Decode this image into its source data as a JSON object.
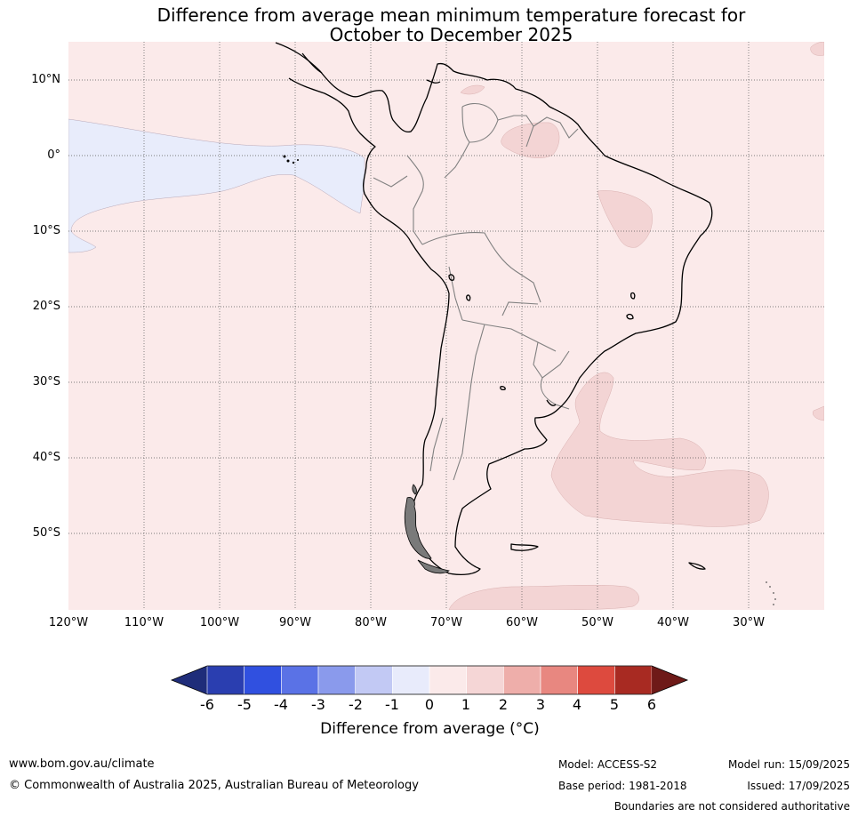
{
  "title": {
    "line1": "Difference from average mean minimum temperature forecast for",
    "line2": "October to December 2025"
  },
  "map": {
    "lat_labels": [
      "10°N",
      "0°",
      "10°S",
      "20°S",
      "30°S",
      "40°S",
      "50°S"
    ],
    "lon_labels": [
      "120°W",
      "110°W",
      "100°W",
      "90°W",
      "80°W",
      "70°W",
      "60°W",
      "50°W",
      "40°W",
      "30°W"
    ],
    "background_anomaly_class": "0 to 1",
    "colors": {
      "anom_0_1": "#fbeaea",
      "anom_1_2": "#f3d4d4",
      "anom_neg1_0": "#e8ecfb",
      "coast": "#000000",
      "borders": "#808080"
    }
  },
  "colorbar": {
    "ticks": [
      "-6",
      "-5",
      "-4",
      "-3",
      "-2",
      "-1",
      "0",
      "1",
      "2",
      "3",
      "4",
      "5",
      "6"
    ],
    "colors": [
      "#1f2d7a",
      "#2a3eb0",
      "#3050e0",
      "#5a72e6",
      "#8a9aec",
      "#c2c9f4",
      "#e8ebfb",
      "#fbeaea",
      "#f5d6d6",
      "#eeaeaa",
      "#e88780",
      "#dd4a3e",
      "#a82a22",
      "#6e1a18"
    ],
    "label": "Difference from average (°C)"
  },
  "footer": {
    "website": "www.bom.gov.au/climate",
    "copyright": "© Commonwealth of Australia 2025, Australian Bureau of Meteorology",
    "model": "Model: ACCESS-S2",
    "base_period": "Base period: 1981-2018",
    "model_run": "Model run: 15/09/2025",
    "issued": "Issued: 17/09/2025",
    "disclaimer": "Boundaries are not considered authoritative"
  }
}
